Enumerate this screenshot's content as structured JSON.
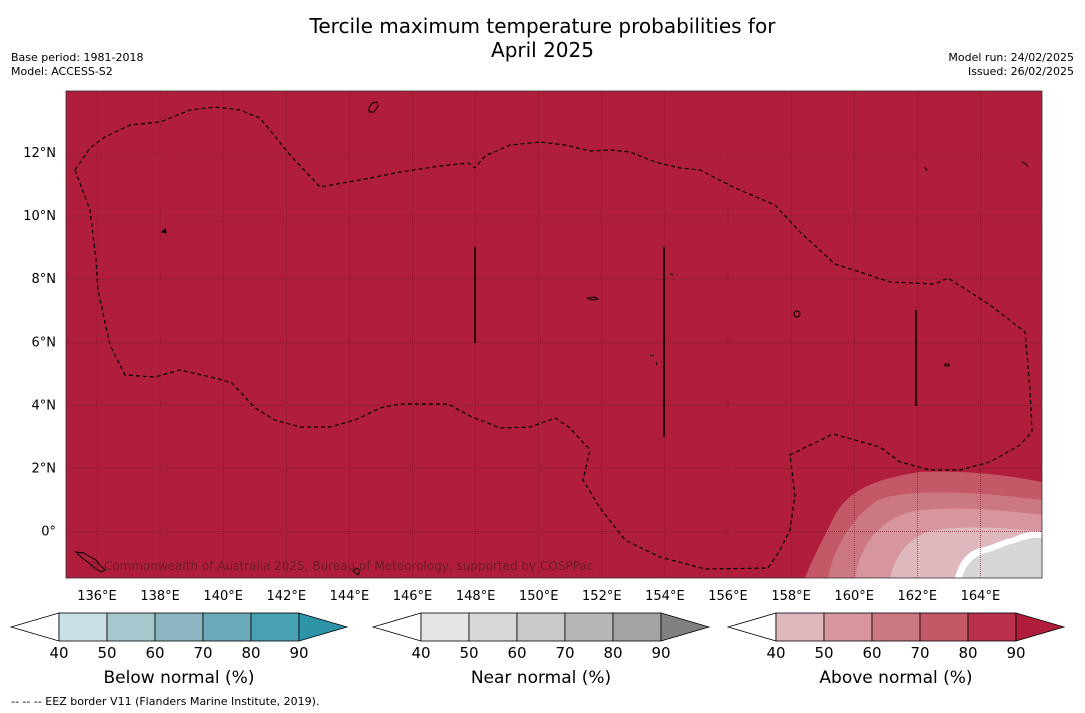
{
  "title_line1": "Tercile maximum temperature probabilities for",
  "title_line2": "April 2025",
  "meta_left": [
    "Base period: 1981-2018",
    "Model: ACCESS-S2"
  ],
  "meta_right": [
    "Model run: 24/02/2025",
    "Issued: 26/02/2025"
  ],
  "map": {
    "region": "Western North Pacific (Federated States of Micronesia)",
    "background_color": "#b11e3b",
    "lon_ticks": [
      "136°E",
      "138°E",
      "140°E",
      "142°E",
      "144°E",
      "146°E",
      "148°E",
      "150°E",
      "152°E",
      "154°E",
      "156°E",
      "158°E",
      "160°E",
      "162°E",
      "164°E"
    ],
    "lat_ticks": [
      "12°N",
      "10°N",
      "8°N",
      "6°N",
      "4°N",
      "2°N",
      "0°"
    ],
    "copyright": "© Commonwealth of Australia 2025, Bureau of Meteorology, supported by COSPPac",
    "eez_border": "dashed black line"
  },
  "colorbars": [
    {
      "title": "Below normal (%)",
      "ticks": [
        "40",
        "50",
        "60",
        "70",
        "80",
        "90"
      ],
      "colors": [
        "#c8e0e6",
        "#a7c7cf",
        "#8ab6c2",
        "#6aaab9",
        "#48a1b2",
        "#2e95a8"
      ]
    },
    {
      "title": "Near normal (%)",
      "ticks": [
        "40",
        "50",
        "60",
        "70",
        "80",
        "90"
      ],
      "colors": [
        "#e5e5e5",
        "#d8d8d8",
        "#c9c9c9",
        "#b7b7b7",
        "#a3a3a3",
        "#808080"
      ]
    },
    {
      "title": "Above normal (%)",
      "ticks": [
        "40",
        "50",
        "60",
        "70",
        "80",
        "90"
      ],
      "colors": [
        "#dfb8be",
        "#d7969e",
        "#cc7880",
        "#c45866",
        "#b9314a",
        "#b11e3b"
      ]
    }
  ],
  "footnote": "--  --  -- EEZ border V11 (Flanders Marine Institute, 2019)."
}
